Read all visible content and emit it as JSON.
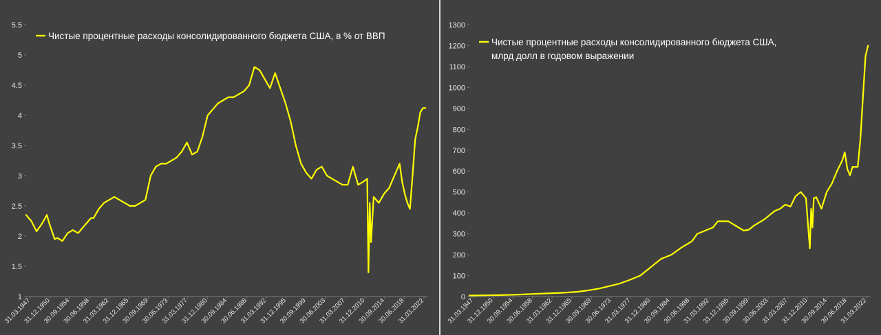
{
  "colors": {
    "background": "#404040",
    "series": "#ffff00",
    "text": "#ffffff",
    "grid": "#555555"
  },
  "x_tick_labels": [
    "31.03.1947",
    "31.12.1950",
    "30.09.1954",
    "30.06.1958",
    "31.03.1962",
    "31.12.1965",
    "30.09.1969",
    "30.06.1973",
    "31.03.1977",
    "31.12.1980",
    "30.09.1984",
    "30.06.1988",
    "31.03.1992",
    "31.12.1995",
    "30.09.1999",
    "30.06.2003",
    "31.03.2007",
    "31.12.2010",
    "30.09.2014",
    "30.06.2018",
    "31.03.2022"
  ],
  "chart_data": [
    {
      "type": "line",
      "title": "",
      "xlabel": "",
      "ylabel": "",
      "ylim": [
        1,
        5.5
      ],
      "y_ticks": [
        1,
        1.5,
        2,
        2.5,
        3,
        3.5,
        4,
        4.5,
        5,
        5.5
      ],
      "y_tick_labels": [
        "1",
        "1.5",
        "2",
        "2.5",
        "3",
        "3.5",
        "4",
        "4.5",
        "5",
        "5.5"
      ],
      "xlim": [
        1947,
        2024.5
      ],
      "grid": false,
      "legend_position": "top-left",
      "legend_lines": [
        "Чистые процентные расходы консолидированного бюджета США, в % от ВВП"
      ],
      "series": [
        {
          "name": "Чистые процентные расходы консолидированного бюджета США, в % от ВВП",
          "x": [
            1947,
            1948,
            1949,
            1950,
            1951,
            1951.5,
            1952.5,
            1953,
            1954,
            1955,
            1956,
            1957,
            1958,
            1959,
            1959.5,
            1960,
            1961,
            1962,
            1963,
            1964,
            1965,
            1966,
            1967,
            1968,
            1969,
            1970,
            1971,
            1972,
            1973,
            1974,
            1975,
            1976,
            1977,
            1978,
            1979,
            1980,
            1981,
            1982,
            1983,
            1984,
            1985,
            1986,
            1987,
            1988,
            1989,
            1990,
            1991,
            1992,
            1993,
            1994,
            1995,
            1996,
            1997,
            1998,
            1999,
            2000,
            2001,
            2002,
            2003,
            2004,
            2005,
            2006,
            2007,
            2008,
            2009,
            2010,
            2011,
            2012,
            2012.75,
            2013,
            2013.25,
            2013.5,
            2014,
            2015,
            2016,
            2017,
            2018,
            2019,
            2019.5,
            2020,
            2020.5,
            2021,
            2021.5,
            2022,
            2022.5,
            2023,
            2023.5,
            2024
          ],
          "values": [
            2.35,
            2.25,
            2.08,
            2.2,
            2.35,
            2.2,
            1.95,
            1.97,
            1.92,
            2.05,
            2.1,
            2.05,
            2.15,
            2.25,
            2.3,
            2.3,
            2.45,
            2.55,
            2.6,
            2.65,
            2.6,
            2.55,
            2.5,
            2.5,
            2.55,
            2.6,
            3.0,
            3.15,
            3.2,
            3.2,
            3.25,
            3.3,
            3.4,
            3.55,
            3.35,
            3.4,
            3.65,
            4.0,
            4.1,
            4.2,
            4.25,
            4.3,
            4.3,
            4.35,
            4.4,
            4.5,
            4.8,
            4.75,
            4.6,
            4.45,
            4.7,
            4.45,
            4.2,
            3.9,
            3.5,
            3.2,
            3.05,
            2.95,
            3.1,
            3.15,
            3.0,
            2.95,
            2.9,
            2.85,
            2.85,
            3.15,
            2.85,
            2.9,
            2.95,
            1.4,
            2.55,
            1.9,
            2.65,
            2.55,
            2.7,
            2.8,
            3.0,
            3.2,
            2.9,
            2.7,
            2.55,
            2.45,
            3.0,
            3.6,
            3.8,
            4.05,
            4.12,
            4.12
          ]
        }
      ]
    },
    {
      "type": "line",
      "title": "",
      "xlabel": "",
      "ylabel": "",
      "ylim": [
        0,
        1300
      ],
      "y_ticks": [
        0,
        100,
        200,
        300,
        400,
        500,
        600,
        700,
        800,
        900,
        1000,
        1100,
        1200,
        1300
      ],
      "y_tick_labels": [
        "0",
        "100",
        "200",
        "300",
        "400",
        "500",
        "600",
        "700",
        "800",
        "900",
        "1000",
        "1100",
        "1200",
        "1300"
      ],
      "xlim": [
        1947,
        2024.5
      ],
      "grid": false,
      "legend_position": "top-left",
      "legend_lines": [
        "Чистые процентные расходы консолидированного бюджета США,",
        "млрд долл в годовом выражении"
      ],
      "series": [
        {
          "name": "Чистые процентные расходы консолидированного бюджета США, млрд долл в годовом выражении",
          "x": [
            1947,
            1950,
            1953,
            1956,
            1959,
            1962,
            1965,
            1968,
            1970,
            1972,
            1974,
            1976,
            1978,
            1980,
            1982,
            1984,
            1986,
            1988,
            1990,
            1991,
            1992,
            1993,
            1994,
            1995,
            1996,
            1997,
            1998,
            1999,
            2000,
            2001,
            2002,
            2003,
            2004,
            2005,
            2006,
            2007,
            2008,
            2009,
            2010,
            2011,
            2012,
            2012.75,
            2013,
            2013.25,
            2013.5,
            2014,
            2015,
            2016,
            2017,
            2018,
            2019,
            2019.5,
            2020,
            2020.5,
            2021,
            2021.5,
            2022,
            2022.5,
            2023,
            2023.5,
            2024
          ],
          "values": [
            5,
            6,
            7,
            9,
            12,
            15,
            18,
            23,
            30,
            38,
            50,
            62,
            80,
            100,
            140,
            180,
            200,
            235,
            265,
            300,
            310,
            320,
            330,
            360,
            360,
            360,
            345,
            330,
            315,
            320,
            340,
            355,
            370,
            390,
            410,
            420,
            440,
            430,
            480,
            500,
            470,
            230,
            420,
            330,
            470,
            475,
            420,
            500,
            540,
            600,
            650,
            690,
            610,
            580,
            620,
            620,
            620,
            750,
            950,
            1150,
            1200
          ]
        }
      ]
    }
  ]
}
